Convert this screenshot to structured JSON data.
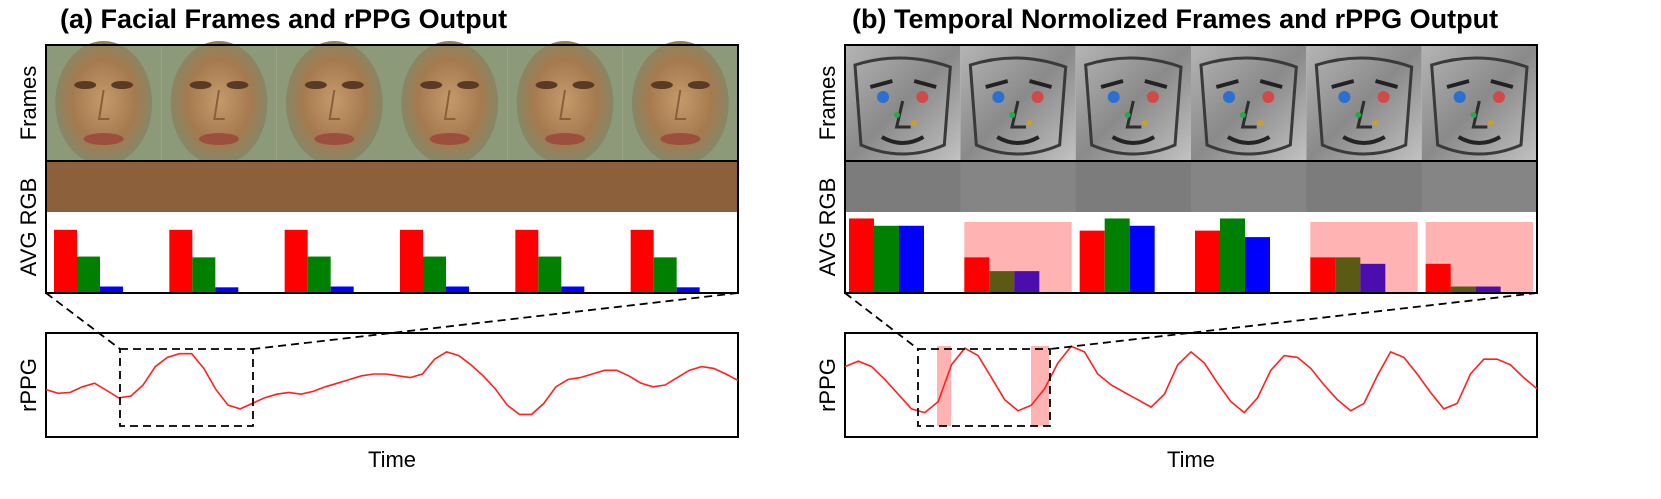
{
  "panels": [
    {
      "title": "(a) Facial Frames and rPPG Output",
      "row_labels": {
        "frames": "Frames",
        "avg_rgb": "AVG RGB",
        "rppg": "rPPG"
      },
      "xlabel": "Time",
      "avg_color": "#8b603b",
      "frame_style": "face",
      "frame_tint": "#a7825c",
      "bars": [
        {
          "r": 0.78,
          "g": 0.45,
          "b": 0.08,
          "highlight": false
        },
        {
          "r": 0.78,
          "g": 0.44,
          "b": 0.07,
          "highlight": false
        },
        {
          "r": 0.78,
          "g": 0.45,
          "b": 0.08,
          "highlight": false
        },
        {
          "r": 0.78,
          "g": 0.45,
          "b": 0.08,
          "highlight": false
        },
        {
          "r": 0.78,
          "g": 0.45,
          "b": 0.08,
          "highlight": false
        },
        {
          "r": 0.78,
          "g": 0.44,
          "b": 0.07,
          "highlight": false
        }
      ],
      "rppg_signal": [
        0.45,
        0.41,
        0.42,
        0.48,
        0.52,
        0.44,
        0.36,
        0.38,
        0.5,
        0.7,
        0.8,
        0.84,
        0.84,
        0.68,
        0.45,
        0.28,
        0.24,
        0.3,
        0.36,
        0.4,
        0.42,
        0.4,
        0.43,
        0.48,
        0.52,
        0.56,
        0.6,
        0.62,
        0.62,
        0.6,
        0.58,
        0.62,
        0.78,
        0.86,
        0.82,
        0.72,
        0.6,
        0.46,
        0.28,
        0.18,
        0.18,
        0.3,
        0.48,
        0.56,
        0.58,
        0.62,
        0.66,
        0.66,
        0.6,
        0.52,
        0.48,
        0.5,
        0.58,
        0.66,
        0.7,
        0.68,
        0.62,
        0.55
      ]
    },
    {
      "title": "(b) Temporal Normolized Frames and rPPG Output",
      "row_labels": {
        "frames": "Frames",
        "avg_rgb": "AVG RGB",
        "rppg": "rPPG"
      },
      "xlabel": "Time",
      "avg_color": "#7c7c7c",
      "frame_style": "normalized",
      "frame_tint": "#9a9a9a",
      "bars": [
        {
          "r": 0.92,
          "g": 0.83,
          "b": 0.83,
          "highlight": false
        },
        {
          "r": 0.44,
          "g": 0.27,
          "b": 0.27,
          "highlight": true
        },
        {
          "r": 0.77,
          "g": 0.92,
          "b": 0.83,
          "highlight": false
        },
        {
          "r": 0.77,
          "g": 0.92,
          "b": 0.69,
          "highlight": false
        },
        {
          "r": 0.44,
          "g": 0.44,
          "b": 0.36,
          "highlight": true
        },
        {
          "r": 0.36,
          "g": 0.08,
          "b": 0.08,
          "highlight": true
        }
      ],
      "rppg_signal": [
        0.7,
        0.76,
        0.7,
        0.56,
        0.4,
        0.24,
        0.2,
        0.32,
        0.72,
        0.9,
        0.82,
        0.58,
        0.34,
        0.22,
        0.28,
        0.46,
        0.74,
        0.92,
        0.86,
        0.62,
        0.5,
        0.42,
        0.34,
        0.26,
        0.4,
        0.72,
        0.86,
        0.74,
        0.52,
        0.32,
        0.2,
        0.36,
        0.66,
        0.82,
        0.8,
        0.68,
        0.5,
        0.34,
        0.22,
        0.3,
        0.6,
        0.86,
        0.8,
        0.62,
        0.42,
        0.24,
        0.3,
        0.62,
        0.78,
        0.78,
        0.72,
        0.58,
        0.46
      ]
    }
  ],
  "colors": {
    "red": "#ff0000",
    "green": "#008000",
    "blue": "#0000ff",
    "muted_green": "#5a5a14",
    "muted_blue": "#4b0dae",
    "highlight": "#ffb3b3",
    "signal": "#ff2020"
  }
}
